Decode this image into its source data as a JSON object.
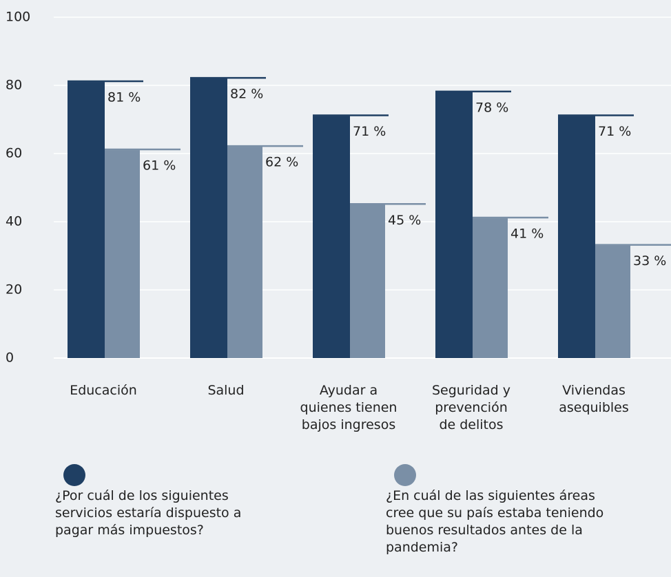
{
  "chart_data": {
    "type": "bar",
    "categories": [
      "Educación",
      "Salud",
      "Ayudar a\nquienes tienen\nbajos ingresos",
      "Seguridad y\nprevención\nde delitos",
      "Viviendas\nasequibles"
    ],
    "series": [
      {
        "name": "¿Por cuál de los siguientes\nservicios estaría dispuesto a\npagar más impuestos?",
        "color": "#1f3f63",
        "values": [
          81,
          82,
          71,
          78,
          71
        ],
        "value_labels": [
          "81 %",
          "82 %",
          "71 %",
          "78 %",
          "71 %"
        ]
      },
      {
        "name": "¿En cuál de las siguientes áreas\ncree que su país estaba teniendo\nbuenos resultados antes de la\npandemia?",
        "color": "#7a8fa6",
        "values": [
          61,
          62,
          45,
          41,
          33
        ],
        "value_labels": [
          "61 %",
          "62 %",
          "45 %",
          "41 %",
          "33 %"
        ]
      }
    ],
    "ylim": [
      0,
      100
    ],
    "yticks": [
      0,
      20,
      40,
      60,
      80,
      100
    ],
    "grid": true
  }
}
